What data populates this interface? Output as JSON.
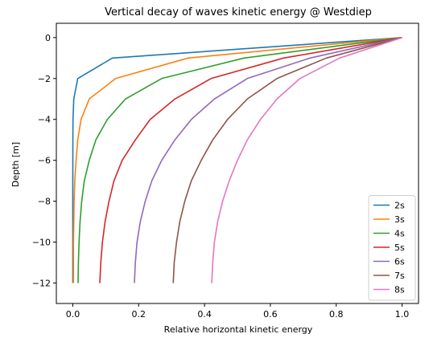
{
  "chart_data": {
    "type": "line",
    "title": "Vertical decay of waves kinetic energy @ Westdiep",
    "xlabel": "Relative horizontal kinetic energy",
    "ylabel": "Depth [m]",
    "xlim": [
      -0.05,
      1.05
    ],
    "ylim": [
      -13,
      0.7
    ],
    "xticks": [
      0.0,
      0.2,
      0.4,
      0.6,
      0.8,
      1.0
    ],
    "xtick_labels": [
      "0.0",
      "0.2",
      "0.4",
      "0.6",
      "0.8",
      "1.0"
    ],
    "yticks": [
      0,
      -2,
      -4,
      -6,
      -8,
      -10,
      -12
    ],
    "ytick_labels": [
      "0",
      "−2",
      "−4",
      "−6",
      "−8",
      "−10",
      "−12"
    ],
    "legend_position": "lower-right",
    "grid": false,
    "depths": [
      0,
      -1,
      -2,
      -3,
      -4,
      -5,
      -6,
      -7,
      -8,
      -9,
      -10,
      -11,
      -12
    ],
    "series": [
      {
        "name": "2s",
        "color": "#1f77b4",
        "values": [
          1.0,
          0.12,
          0.015,
          0.003,
          0.0006,
          0.0002,
          0.0001,
          0.0,
          0.0,
          0.0,
          0.0,
          0.0,
          0.0
        ]
      },
      {
        "name": "3s",
        "color": "#ff7f0e",
        "values": [
          1.0,
          0.35,
          0.13,
          0.05,
          0.025,
          0.015,
          0.01,
          0.006,
          0.004,
          0.003,
          0.002,
          0.002,
          0.002
        ]
      },
      {
        "name": "4s",
        "color": "#2ca02c",
        "values": [
          1.0,
          0.52,
          0.27,
          0.16,
          0.105,
          0.07,
          0.05,
          0.035,
          0.027,
          0.022,
          0.019,
          0.017,
          0.016
        ]
      },
      {
        "name": "5s",
        "color": "#d62728",
        "values": [
          1.0,
          0.64,
          0.42,
          0.31,
          0.235,
          0.19,
          0.15,
          0.125,
          0.11,
          0.098,
          0.09,
          0.085,
          0.082
        ]
      },
      {
        "name": "6s",
        "color": "#9467bd",
        "values": [
          1.0,
          0.72,
          0.53,
          0.43,
          0.36,
          0.31,
          0.27,
          0.24,
          0.22,
          0.205,
          0.195,
          0.19,
          0.187
        ]
      },
      {
        "name": "7s",
        "color": "#8c564b",
        "values": [
          1.0,
          0.77,
          0.62,
          0.53,
          0.47,
          0.425,
          0.39,
          0.36,
          0.34,
          0.325,
          0.315,
          0.308,
          0.305
        ]
      },
      {
        "name": "8s",
        "color": "#e377c2",
        "values": [
          1.0,
          0.81,
          0.69,
          0.62,
          0.57,
          0.53,
          0.5,
          0.475,
          0.455,
          0.44,
          0.43,
          0.425,
          0.422
        ]
      }
    ]
  }
}
